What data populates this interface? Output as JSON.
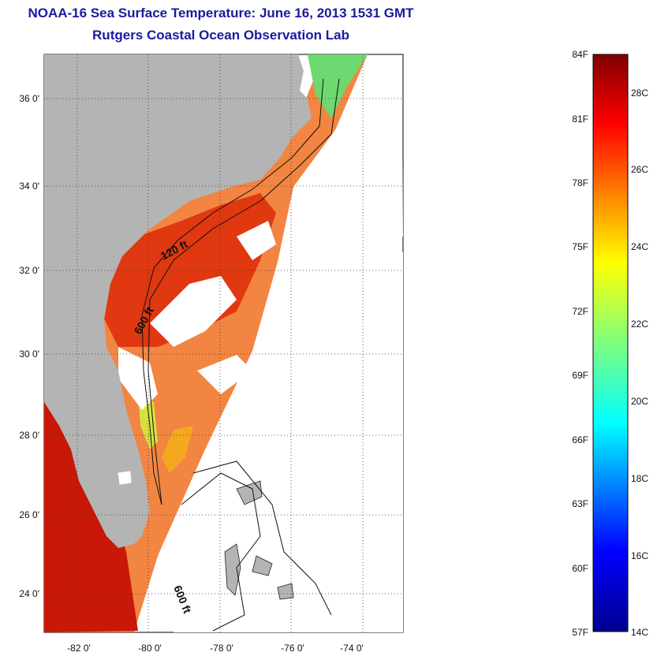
{
  "title": "NOAA-16 Sea Surface Temperature:  June 16, 2013 1531 GMT",
  "subtitle": "Rutgers Coastal Ocean Observation Lab",
  "map": {
    "lat_ticks": [
      "36 0'",
      "34 0'",
      "32 0'",
      "30 0'",
      "28 0'",
      "26 0'",
      "24 0'"
    ],
    "lon_ticks": [
      "-82 0'",
      "-80 0'",
      "-78 0'",
      "-76 0'",
      "-74 0'"
    ],
    "contour_labels": [
      "120 ft",
      "600 ft",
      "600 ft"
    ],
    "colors": {
      "land": "#b4b4b4",
      "cloud": "#ffffff"
    }
  },
  "colorbar": {
    "f_labels": [
      "84F",
      "81F",
      "78F",
      "75F",
      "72F",
      "69F",
      "66F",
      "63F",
      "60F",
      "57F"
    ],
    "c_labels": [
      "28C",
      "26C",
      "24C",
      "22C",
      "20C",
      "18C",
      "16C",
      "14C"
    ],
    "stops": [
      "#00008f",
      "#0000ff",
      "#00ffff",
      "#7fff7f",
      "#ffff00",
      "#ff7f00",
      "#ff0000",
      "#800000"
    ]
  }
}
